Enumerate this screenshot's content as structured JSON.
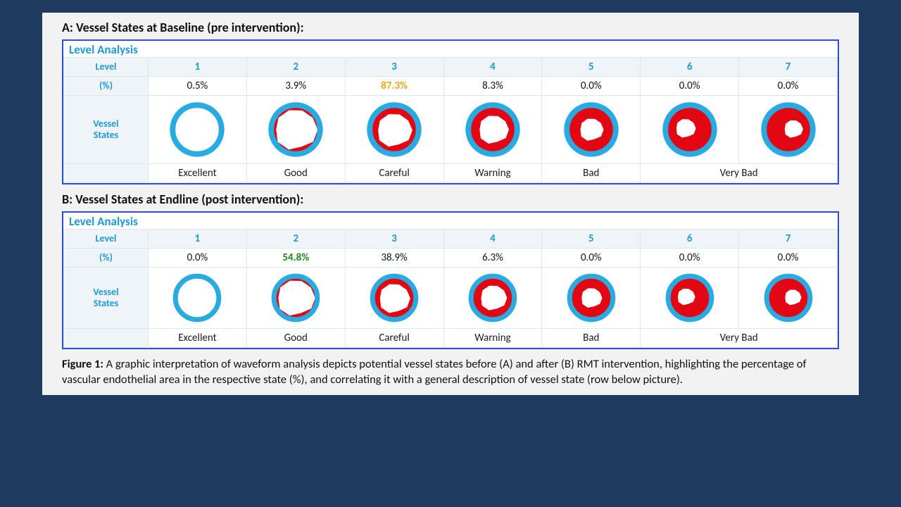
{
  "colors": {
    "page_bg": "#1e3a5f",
    "panel_bg": "#f2f2f2",
    "table_border": "#2a4fd0",
    "cell_border": "#dbe6ee",
    "header_bg": "#eef4f8",
    "accent_text": "#1f99d6",
    "vessel_outer": "#29abe2",
    "vessel_inner": "#e30613",
    "lumen": "#ffffff",
    "highlight_orange": "#e6a817",
    "highlight_green": "#1a8a1a",
    "text": "#111111"
  },
  "levels": [
    "1",
    "2",
    "3",
    "4",
    "5",
    "6",
    "7"
  ],
  "row_labels": {
    "level": "Level",
    "pct": "(%)",
    "vessel": "Vessel States"
  },
  "descriptions": [
    "Excellent",
    "Good",
    "Careful",
    "Warning",
    "Bad",
    "Very Bad",
    "Very Bad"
  ],
  "desc_spans": [
    1,
    1,
    1,
    1,
    1,
    2
  ],
  "desc_labels": [
    "Excellent",
    "Good",
    "Careful",
    "Warning",
    "Bad",
    "Very Bad"
  ],
  "sections": {
    "A": {
      "title": "A: Vessel States at Baseline (pre intervention):",
      "analysis_label": "Level Analysis",
      "pct": [
        "0.5%",
        "3.9%",
        "87.3%",
        "8.3%",
        "0.0%",
        "0.0%",
        "0.0%"
      ],
      "highlight_index": 2,
      "highlight_color": "#e6a817",
      "vessel_svg_size": 88
    },
    "B": {
      "title": "B: Vessel States at Endline (post intervention):",
      "analysis_label": "Level Analysis",
      "pct": [
        "0.0%",
        "54.8%",
        "38.9%",
        "6.3%",
        "0.0%",
        "0.0%",
        "0.0%"
      ],
      "highlight_index": 1,
      "highlight_color": "#1a8a1a",
      "vessel_svg_size": 78
    }
  },
  "vessel_shapes": [
    {
      "outer_r": 44,
      "outer_stroke": 9,
      "inner_r": 0,
      "lumen_r": 0,
      "lumen_dx": 0,
      "lumen_dy": 0
    },
    {
      "outer_r": 44,
      "outer_stroke": 9,
      "inner_r": 36,
      "lumen_r": 34,
      "lumen_dx": 0,
      "lumen_dy": 0
    },
    {
      "outer_r": 44,
      "outer_stroke": 9,
      "inner_r": 36,
      "lumen_r": 28,
      "lumen_dx": 0,
      "lumen_dy": 1
    },
    {
      "outer_r": 44,
      "outer_stroke": 9,
      "inner_r": 36,
      "lumen_r": 24,
      "lumen_dx": 1,
      "lumen_dy": 0
    },
    {
      "outer_r": 44,
      "outer_stroke": 9,
      "inner_r": 36,
      "lumen_r": 19,
      "lumen_dx": 0,
      "lumen_dy": 0
    },
    {
      "outer_r": 44,
      "outer_stroke": 9,
      "inner_r": 36,
      "lumen_r": 16,
      "lumen_dx": -7,
      "lumen_dy": -2
    },
    {
      "outer_r": 44,
      "outer_stroke": 9,
      "inner_r": 36,
      "lumen_r": 15,
      "lumen_dx": 8,
      "lumen_dy": -1
    }
  ],
  "caption_bold": "Figure 1:",
  "caption_text": " A graphic interpretation of waveform analysis depicts potential vessel states before (A) and after (B) RMT intervention, highlighting the percentage of vascular endothelial area in the respective state (%), and correlating it with a general description of vessel state (row below picture)."
}
